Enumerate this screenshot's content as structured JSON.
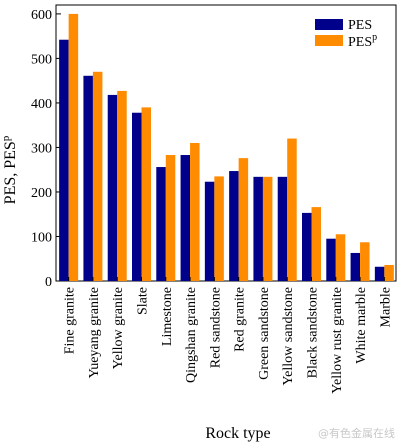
{
  "chart_data": {
    "type": "bar",
    "categories": [
      "Fine granite",
      "Yueyang granite",
      "Yellow granite",
      "Slate",
      "Limestone",
      "Qingshan granite",
      "Red sandstone",
      "Red granite",
      "Green sandstone",
      "Yellow sandstone",
      "Black sandstone",
      "Yellow rust granite",
      "White marble",
      "Marble"
    ],
    "series": [
      {
        "name": "PES",
        "name_base": "PES",
        "name_sup": "",
        "color": "#00008b",
        "values": [
          542,
          461,
          418,
          378,
          256,
          283,
          223,
          247,
          234,
          234,
          153,
          95,
          63,
          32
        ]
      },
      {
        "name": "PESp",
        "name_base": "PES",
        "name_sup": "p",
        "color": "#ff8c00",
        "values": [
          600,
          470,
          427,
          390,
          283,
          310,
          235,
          276,
          234,
          320,
          166,
          105,
          87,
          36
        ]
      }
    ],
    "xlabel": "Rock type",
    "ylabel_base": "PES, PES",
    "ylabel_sup": "p",
    "ylim": [
      0,
      620
    ],
    "yticks": [
      0,
      100,
      200,
      300,
      400,
      500,
      600
    ],
    "grid": false,
    "legend_position": "top-right"
  },
  "watermark": "@有色金属在线"
}
